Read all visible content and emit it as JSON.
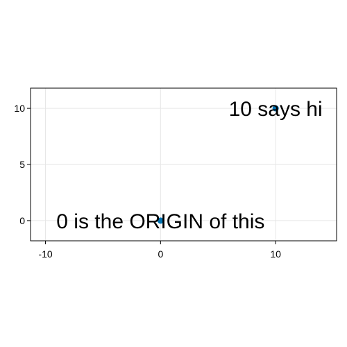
{
  "chart_data": {
    "type": "scatter",
    "title": "",
    "xlabel": "",
    "ylabel": "",
    "xlim": [
      -11.3,
      15.3
    ],
    "ylim": [
      -1.8,
      11.8
    ],
    "grid": true,
    "xticks": [
      -10,
      0,
      10
    ],
    "xtick_labels": [
      "-10",
      "0",
      "10"
    ],
    "yticks": [
      0,
      5,
      10
    ],
    "ytick_labels": [
      "0",
      "5",
      "10"
    ],
    "series": [
      {
        "points": [
          {
            "x": 0,
            "y": 0
          },
          {
            "x": 10,
            "y": 10
          }
        ],
        "color": "#0072b2"
      }
    ],
    "annotations": [
      {
        "text": "0 is the ORIGIN of this",
        "x": 0,
        "y": 0,
        "align": "center"
      },
      {
        "text": "10 says hi",
        "x": 10,
        "y": 10,
        "align": "center"
      }
    ]
  },
  "colors": {
    "marker": "#0072b2",
    "grid": "#e6e6e6",
    "frame": "#000000"
  }
}
